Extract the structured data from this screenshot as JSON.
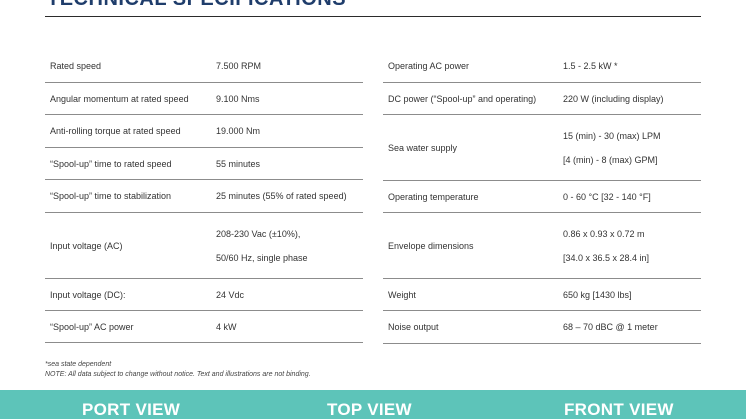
{
  "section_title": "TECHNICAL SPECIFICATIONS",
  "left_table": [
    {
      "label": "Rated speed",
      "values": [
        "7.500 RPM"
      ]
    },
    {
      "label": "Angular momentum at rated speed",
      "values": [
        "9.100 Nms"
      ]
    },
    {
      "label": "Anti-rolling torque at rated speed",
      "values": [
        "19.000 Nm"
      ]
    },
    {
      "label": "“Spool-up”  time to rated speed",
      "values": [
        "55 minutes"
      ]
    },
    {
      "label": "“Spool-up” time to stabilization",
      "values": [
        "25 minutes (55% of rated speed)"
      ]
    },
    {
      "label": "Input voltage (AC)",
      "values": [
        "208-230 Vac (±10%),",
        "50/60 Hz, single phase"
      ]
    },
    {
      "label": " Input voltage (DC):",
      "values": [
        "24 Vdc"
      ]
    },
    {
      "label": "“Spool-up” AC power",
      "values": [
        "4 kW"
      ]
    }
  ],
  "right_table": [
    {
      "label": "Operating AC power",
      "values": [
        "1.5 - 2.5 kW *"
      ]
    },
    {
      "label": "DC power (“Spool-up” and operating)",
      "values": [
        "220 W (including display)"
      ]
    },
    {
      "label": " Sea water supply",
      "values": [
        "15 (min) - 30 (max) LPM",
        "[4 (min) - 8 (max) GPM]"
      ]
    },
    {
      "label": "Operating temperature",
      "values": [
        "0 - 60 °C [32 - 140 °F]"
      ]
    },
    {
      "label": "Envelope dimensions",
      "values": [
        "0.86 x 0.93 x 0.72 m",
        "[34.0 x 36.5 x 28.4 in]"
      ]
    },
    {
      "label": "Weight",
      "values": [
        "650 kg [1430 lbs]"
      ]
    },
    {
      "label": "Noise output",
      "values": [
        "68 – 70 dBC @ 1 meter"
      ]
    }
  ],
  "footnotes": {
    "sea_state": "*sea state dependent",
    "note": "NOTE: All data subject to change without notice. Text and illustrations are not binding."
  },
  "views": {
    "port": "PORT VIEW",
    "top": "TOP VIEW",
    "front": "FRONT VIEW"
  },
  "colors": {
    "title": "#1f3d6b",
    "view_bar": "#5dc4b9",
    "rule": "#8c8c8c"
  }
}
